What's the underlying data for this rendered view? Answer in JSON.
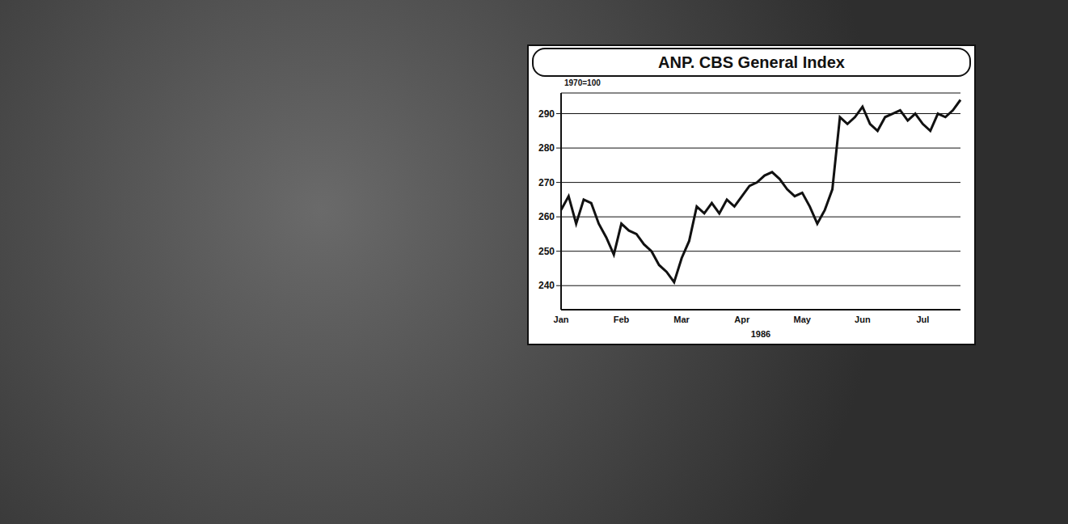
{
  "chart_data": {
    "type": "line",
    "title": "ANP. CBS General Index",
    "y_label": "1970=100",
    "x_label": "1986",
    "categories": [
      "Jan",
      null,
      null,
      null,
      null,
      null,
      null,
      null,
      "Feb",
      null,
      null,
      null,
      null,
      null,
      null,
      null,
      "Mar",
      null,
      null,
      null,
      null,
      null,
      null,
      null,
      "Apr",
      null,
      null,
      null,
      null,
      null,
      null,
      null,
      "May",
      null,
      null,
      null,
      null,
      null,
      null,
      null,
      "Jun",
      null,
      null,
      null,
      null,
      null,
      null,
      null,
      "Jul",
      null,
      null,
      null,
      null,
      null
    ],
    "values": [
      262,
      266,
      258,
      265,
      264,
      258,
      254,
      249,
      258,
      256,
      255,
      252,
      250,
      246,
      244,
      241,
      248,
      253,
      263,
      261,
      264,
      261,
      265,
      263,
      266,
      269,
      270,
      272,
      273,
      271,
      268,
      266,
      267,
      263,
      258,
      262,
      268,
      289,
      287,
      289,
      292,
      287,
      285,
      289,
      290,
      291,
      288,
      290,
      287,
      285,
      290,
      289,
      291,
      294
    ],
    "color": "#111111",
    "ylim": [
      233,
      296
    ],
    "yticks": [
      240,
      250,
      260,
      270,
      280,
      290
    ],
    "grid": true
  }
}
